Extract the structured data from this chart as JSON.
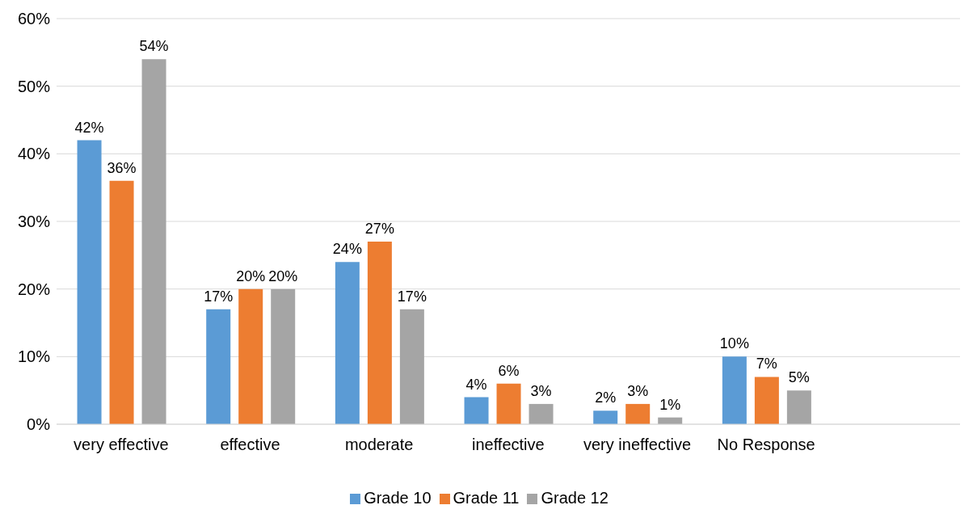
{
  "chart_data": {
    "type": "bar",
    "categories": [
      "very effective",
      "effective",
      "moderate",
      "ineffective",
      "very ineffective",
      "No Response"
    ],
    "series": [
      {
        "name": "Grade 10",
        "color": "#5b9bd5",
        "values": [
          42,
          17,
          24,
          4,
          2,
          10
        ],
        "value_labels": [
          "42%",
          "17%",
          "24%",
          "4%",
          "2%",
          "10%"
        ]
      },
      {
        "name": "Grade 11",
        "color": "#ed7d31",
        "values": [
          36,
          20,
          27,
          6,
          3,
          7
        ],
        "value_labels": [
          "36%",
          "20%",
          "27%",
          "6%",
          "3%",
          "7%"
        ]
      },
      {
        "name": "Grade 12",
        "color": "#a5a5a5",
        "values": [
          54,
          20,
          17,
          3,
          1,
          5
        ],
        "value_labels": [
          "54%",
          "20%",
          "17%",
          "3%",
          "1%",
          "5%"
        ]
      }
    ],
    "ylim": [
      0,
      60
    ],
    "yticks": [
      {
        "value": 0,
        "label": "0%"
      },
      {
        "value": 10,
        "label": "10%"
      },
      {
        "value": 20,
        "label": "20%"
      },
      {
        "value": 30,
        "label": "30%"
      },
      {
        "value": 40,
        "label": "40%"
      },
      {
        "value": 50,
        "label": "50%"
      },
      {
        "value": 60,
        "label": "60%"
      }
    ],
    "grid": "y",
    "legend": "bottom"
  }
}
